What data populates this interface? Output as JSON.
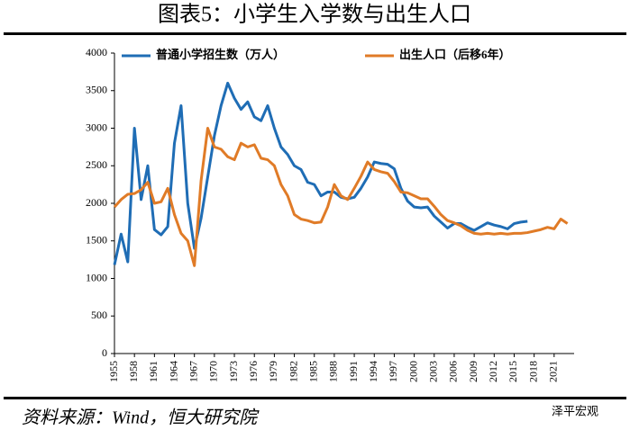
{
  "chart_data": {
    "type": "line",
    "title": "图表5：小学生入学数与出生人口",
    "source": "资料来源：Wind，恒大研究院",
    "watermark": "泽平宏观",
    "x": [
      1955,
      1956,
      1957,
      1958,
      1959,
      1960,
      1961,
      1962,
      1963,
      1964,
      1965,
      1966,
      1967,
      1968,
      1969,
      1970,
      1971,
      1972,
      1973,
      1974,
      1975,
      1976,
      1977,
      1978,
      1979,
      1980,
      1981,
      1982,
      1983,
      1984,
      1985,
      1986,
      1987,
      1988,
      1989,
      1990,
      1991,
      1992,
      1993,
      1994,
      1995,
      1996,
      1997,
      1998,
      1999,
      2000,
      2001,
      2002,
      2003,
      2004,
      2005,
      2006,
      2007,
      2008,
      2009,
      2010,
      2011,
      2012,
      2013,
      2014,
      2015,
      2016,
      2017,
      2018,
      2019,
      2020,
      2021,
      2022,
      2023
    ],
    "series": [
      {
        "name": "普通小学招生数（万人）",
        "color": "#1f6db5",
        "values": [
          1180,
          1590,
          1220,
          3000,
          2050,
          2500,
          1650,
          1580,
          1690,
          2800,
          3300,
          2000,
          1400,
          1800,
          2350,
          2900,
          3300,
          3600,
          3400,
          3250,
          3350,
          3150,
          3100,
          3300,
          3000,
          2750,
          2650,
          2500,
          2450,
          2280,
          2250,
          2100,
          2150,
          2150,
          2080,
          2060,
          2080,
          2200,
          2350,
          2550,
          2530,
          2520,
          2460,
          2200,
          2030,
          1950,
          1940,
          1950,
          1830,
          1750,
          1670,
          1730,
          1730,
          1680,
          1640,
          1690,
          1740,
          1710,
          1690,
          1660,
          1730,
          1750,
          1760,
          null,
          null,
          null,
          null,
          null,
          null
        ]
      },
      {
        "name": "出生人口（后移6年）",
        "color": "#e07b27",
        "values": [
          1950,
          2050,
          2120,
          2130,
          2180,
          2280,
          2000,
          2020,
          2200,
          1850,
          1600,
          1500,
          1170,
          2300,
          3000,
          2750,
          2720,
          2620,
          2580,
          2800,
          2750,
          2780,
          2600,
          2580,
          2500,
          2250,
          2100,
          1850,
          1790,
          1770,
          1740,
          1750,
          1950,
          2250,
          2100,
          2050,
          2200,
          2360,
          2550,
          2450,
          2420,
          2400,
          2290,
          2150,
          2140,
          2100,
          2060,
          2060,
          1960,
          1850,
          1770,
          1740,
          1700,
          1640,
          1600,
          1590,
          1600,
          1590,
          1600,
          1590,
          1600,
          1600,
          1610,
          1630,
          1650,
          1680,
          1660,
          1790,
          1730
        ]
      }
    ],
    "xlim": [
      1955,
      2024
    ],
    "xticks": [
      1955,
      1958,
      1961,
      1964,
      1967,
      1970,
      1973,
      1976,
      1979,
      1982,
      1985,
      1988,
      1991,
      1994,
      1997,
      2000,
      2003,
      2006,
      2009,
      2012,
      2015,
      2018,
      2021
    ],
    "ylim": [
      0,
      4000
    ],
    "yticks": [
      0,
      500,
      1000,
      1500,
      2000,
      2500,
      3000,
      3500,
      4000
    ],
    "grid": false
  }
}
